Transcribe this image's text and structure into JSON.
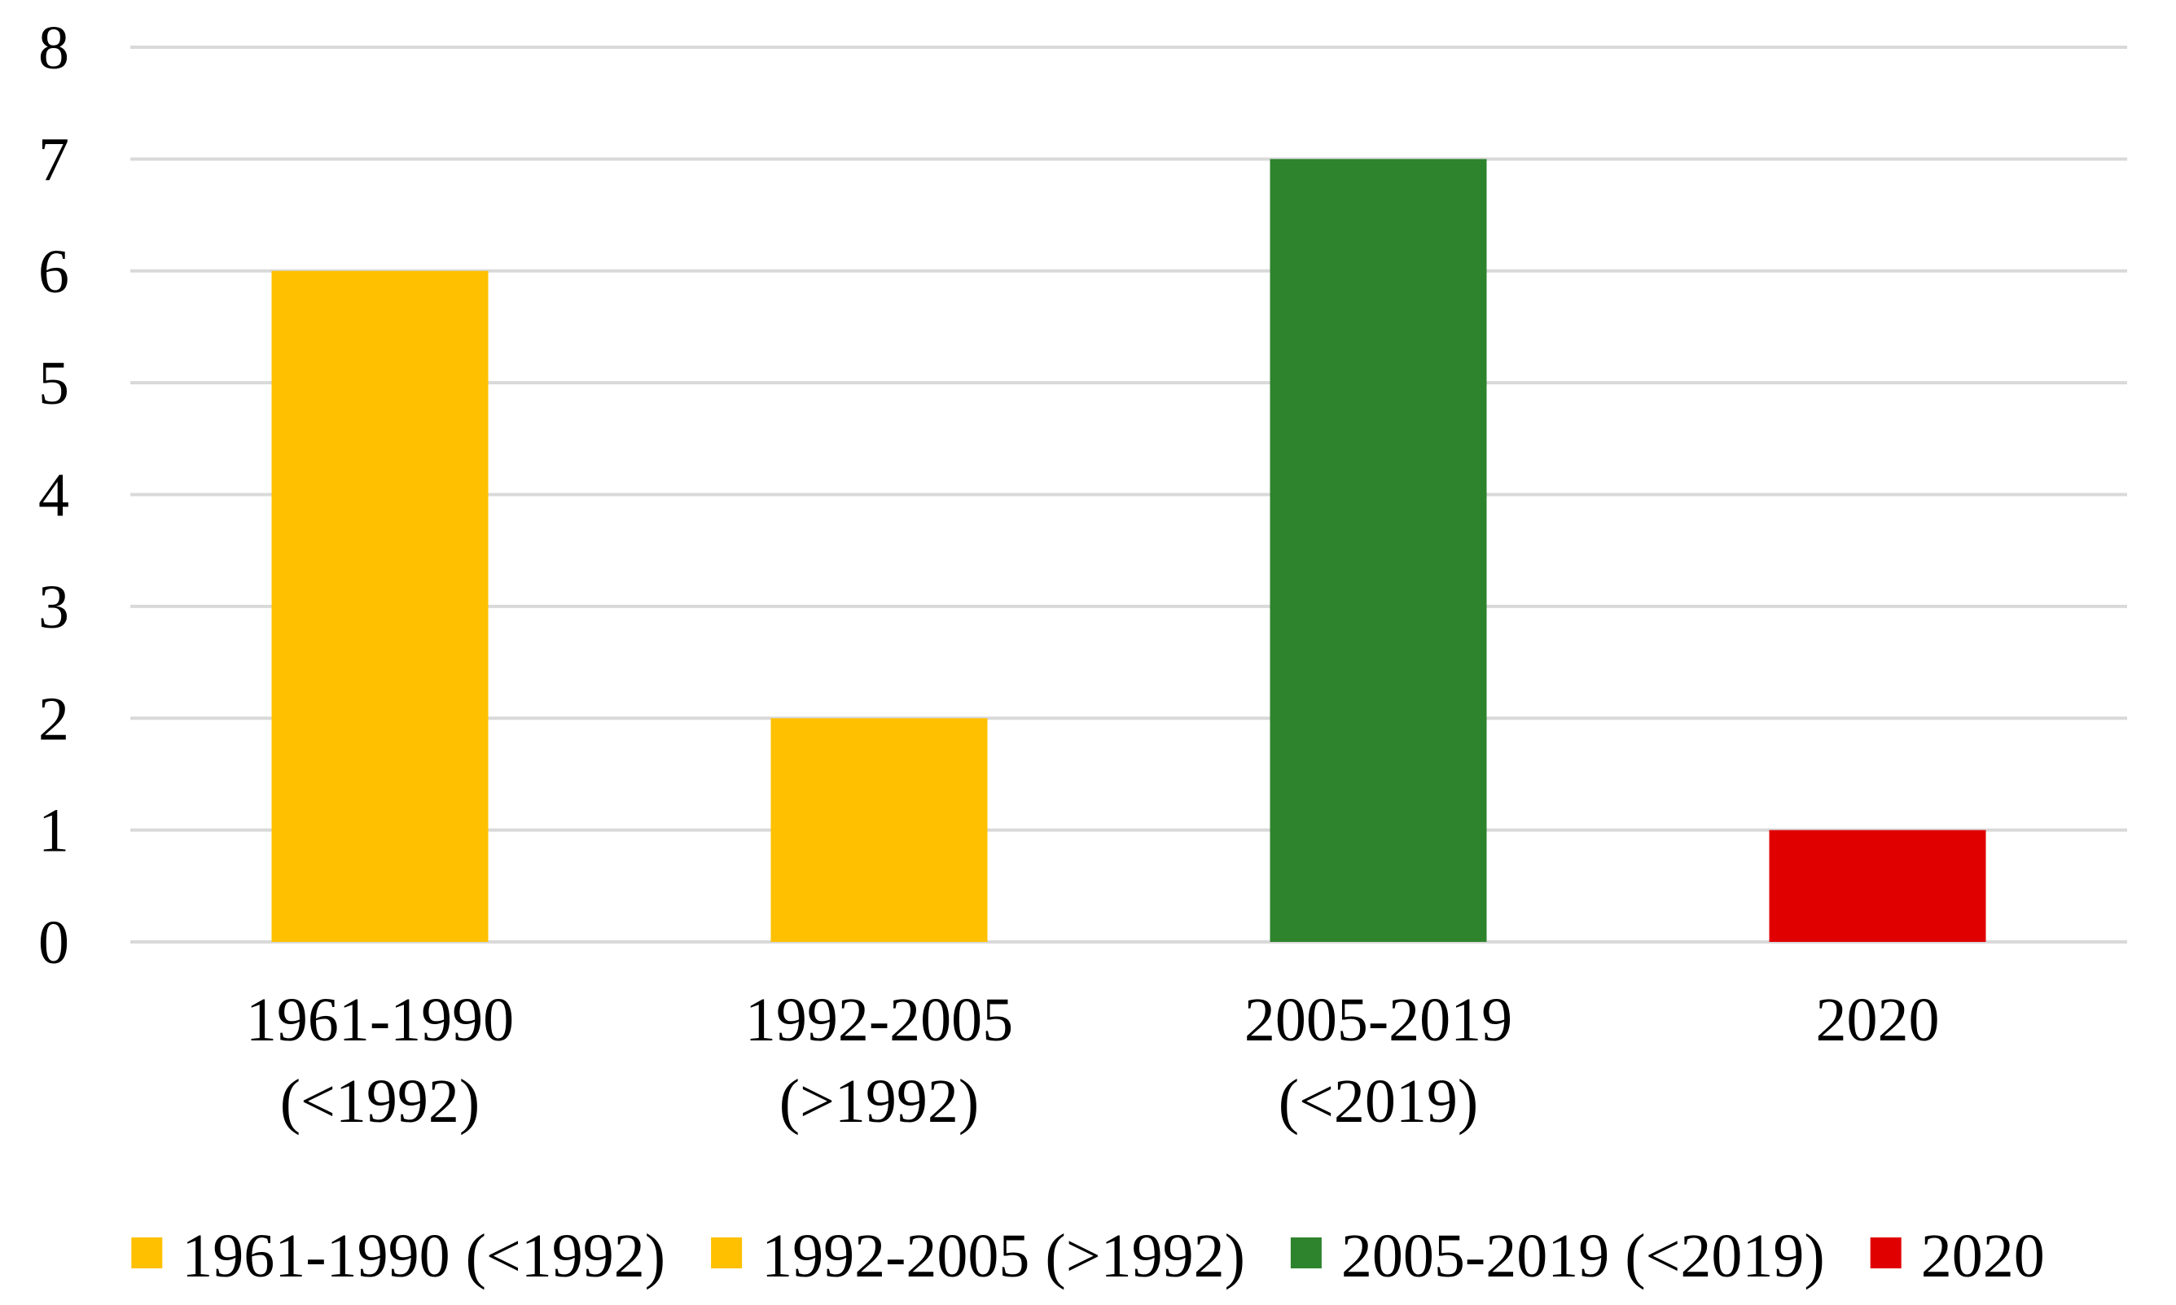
{
  "chart_data": {
    "type": "bar",
    "title": "",
    "xlabel": "",
    "ylabel": "",
    "ylim": [
      0,
      8
    ],
    "yticks": [
      "0",
      "1",
      "2",
      "3",
      "4",
      "5",
      "6",
      "7",
      "8"
    ],
    "grid": true,
    "legend_position": "bottom",
    "categories": [
      [
        "1961-1990",
        "(<1992)"
      ],
      [
        "1992-2005",
        "(>1992)"
      ],
      [
        "2005-2019",
        "(<2019)"
      ],
      [
        "2020"
      ]
    ],
    "values": [
      6,
      2,
      7,
      1
    ],
    "bar_colors": [
      "#FFC000",
      "#FFC000",
      "#2E832D",
      "#E00000"
    ],
    "legend": [
      {
        "label": "1961-1990 (<1992)",
        "color": "#FFC000"
      },
      {
        "label": "1992-2005 (>1992)",
        "color": "#FFC000"
      },
      {
        "label": "2005-2019 (<2019)",
        "color": "#2E832D"
      },
      {
        "label": "2020",
        "color": "#E00000"
      }
    ]
  }
}
